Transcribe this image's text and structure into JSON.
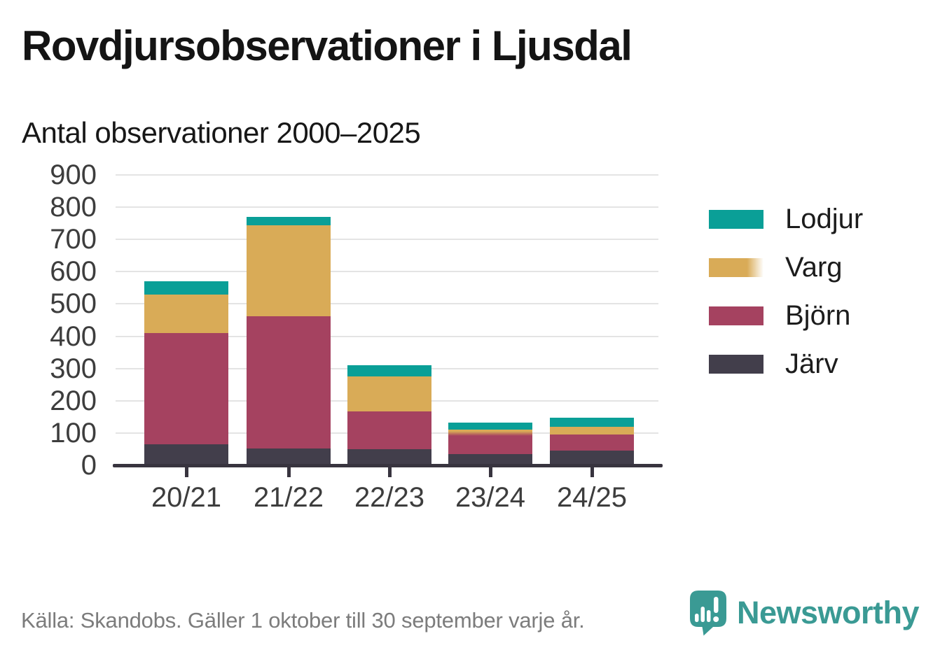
{
  "title": "Rovdjursobservationer i Ljusdal",
  "subtitle": "Antal observationer 2000–2025",
  "footer": {
    "source": "Källa: Skandobs. Gäller 1 oktober till 30 september varje år.",
    "brand": "Newsworthy"
  },
  "colors": {
    "lodjur_teal": "#0a9f97",
    "varg_gold": "#d9ab57",
    "bjorn_maroon": "#a54260",
    "jarv_dark": "#423e4b",
    "axis": "#38343f",
    "gridline": "#e4e4e4",
    "axis_text": "#3d3d3d",
    "footer_text": "#7c7c7c",
    "brand_teal": "#3a9a94"
  },
  "chart_data": {
    "type": "bar",
    "stacked": true,
    "grid": true,
    "categories": [
      "20/21",
      "21/22",
      "22/23",
      "23/24",
      "24/25"
    ],
    "series": [
      {
        "name": "Järv",
        "color": "#423e4b",
        "values": [
          65,
          53,
          50,
          34,
          45
        ]
      },
      {
        "name": "Björn",
        "color": "#a54260",
        "values": [
          345,
          410,
          117,
          57,
          50
        ]
      },
      {
        "name": "Varg",
        "color": "#d9ab57",
        "values": [
          120,
          280,
          108,
          20,
          25
        ],
        "uncertain_categories": [
          "23/24"
        ]
      },
      {
        "name": "Lodjur",
        "color": "#0a9f97",
        "values": [
          40,
          27,
          35,
          22,
          27
        ]
      }
    ],
    "ylim": [
      0,
      900
    ],
    "ytick_step": 100,
    "yticks": [
      0,
      100,
      200,
      300,
      400,
      500,
      600,
      700,
      800,
      900
    ],
    "legend_position": "right",
    "legend": [
      {
        "label": "Lodjur",
        "color": "#0a9f97"
      },
      {
        "label": "Varg",
        "color": "#d9ab57",
        "fade": true
      },
      {
        "label": "Björn",
        "color": "#a54260"
      },
      {
        "label": "Järv",
        "color": "#423e4b"
      }
    ]
  }
}
